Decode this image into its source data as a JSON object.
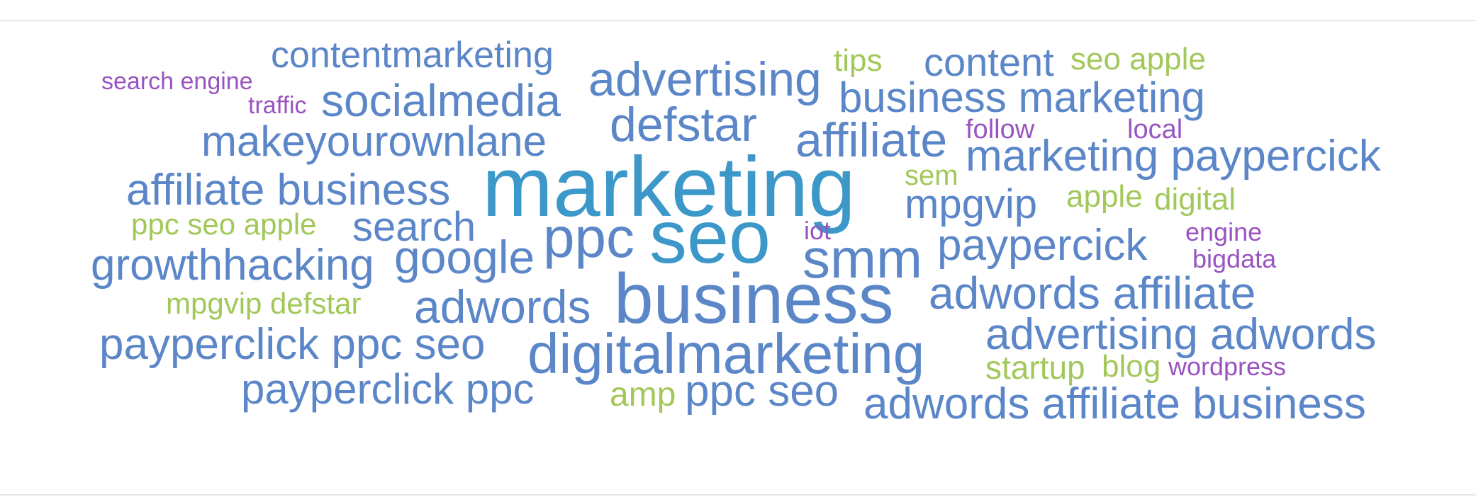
{
  "colors": {
    "blue": "#5b86c8",
    "teal": "#3c98c9",
    "green": "#a2c85a",
    "purple": "#9a54c0",
    "rule": "#e6e6e6"
  },
  "words": [
    "contentmarketing",
    "search engine",
    "traffic",
    "socialmedia",
    "advertising",
    "tips",
    "content",
    "seo apple",
    "business marketing",
    "makeyourownlane",
    "defstar",
    "affiliate",
    "follow",
    "local",
    "marketing paypercick",
    "marketing",
    "affiliate business",
    "sem",
    "mpgvip",
    "apple",
    "digital",
    "ppc seo apple",
    "search",
    "ppc",
    "seo",
    "iot",
    "engine",
    "growthhacking",
    "google",
    "smm",
    "paypercick",
    "bigdata",
    "business",
    "mpgvip defstar",
    "adwords",
    "adwords affiliate",
    "payperclick ppc seo",
    "digitalmarketing",
    "advertising adwords",
    "startup",
    "blog",
    "wordpress",
    "payperclick ppc",
    "amp",
    "ppc seo",
    "adwords affiliate business"
  ]
}
